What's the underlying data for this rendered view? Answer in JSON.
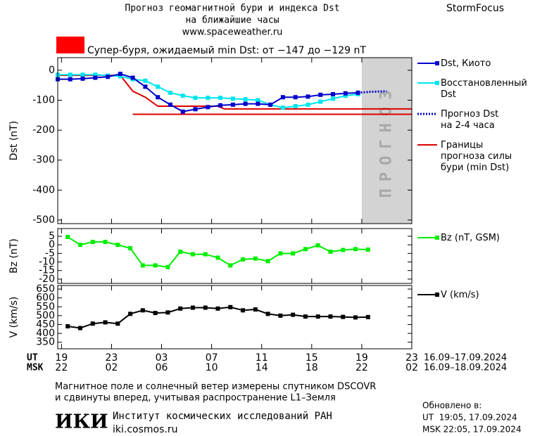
{
  "header": {
    "title": "Прогноз геомагнитной бури и индекса Dst",
    "subtitle": "на ближайшие часы",
    "url": "www.spaceweather.ru",
    "brand": "StormFocus",
    "storm_text": "Супер-буря, ожидаемый min Dst: от −147 до −129 nT",
    "storm_color": "#ff0000"
  },
  "chart_data": [
    {
      "type": "line",
      "ylabel": "Dst (nT)",
      "xlim": [
        -0.3,
        28
      ],
      "ylim": [
        -512,
        42
      ],
      "xticks": [
        0,
        4,
        8,
        12,
        16,
        20,
        24,
        28
      ],
      "yticks": [
        0,
        -100,
        -200,
        -300,
        -400,
        -500
      ],
      "forecast_x": [
        24,
        28
      ],
      "forecast_color": "#d3d3d3",
      "forecast_label": "ПРОГНОЗ",
      "series": [
        {
          "name": "Границы\nпрогноза силы\nбури (min Dst)",
          "color": "#dd0000",
          "marker": "none",
          "x": [
            -0.3,
            4.7,
            5.7,
            6.7,
            7.7,
            12.5,
            13,
            28
          ],
          "values": [
            -17,
            -17,
            -70,
            -90,
            -120,
            -120,
            -129,
            -129
          ]
        },
        {
          "color": "#dd0000",
          "marker": "none",
          "x": [
            5.7,
            28
          ],
          "values": [
            -147,
            -147
          ]
        },
        {
          "name": "Восстановленный\nDst",
          "color": "#00e5ee",
          "marker": "square",
          "x": [
            -0.3,
            0.7,
            1.7,
            2.7,
            3.7,
            4.7,
            5.7,
            6.7,
            7.7,
            8.7,
            9.7,
            10.7,
            11.7,
            12.7,
            13.7,
            14.7,
            15.7,
            16.7,
            17.7,
            18.7,
            19.7,
            20.7,
            21.7,
            22.7,
            23.7
          ],
          "values": [
            -15,
            -15,
            -15,
            -15,
            -18,
            -20,
            -30,
            -35,
            -55,
            -75,
            -85,
            -92,
            -92,
            -92,
            -95,
            -97,
            -100,
            -115,
            -125,
            -120,
            -115,
            -105,
            -95,
            -85,
            -80
          ]
        },
        {
          "name": "Dst, Киото",
          "color": "#0000cc",
          "marker": "square",
          "x": [
            -0.3,
            0.7,
            1.7,
            2.7,
            3.7,
            4.7,
            5.7,
            6.7,
            7.7,
            8.7,
            9.7,
            10.7,
            11.7,
            12.7,
            13.7,
            14.7,
            15.7,
            16.7,
            17.7,
            18.7,
            19.7,
            20.7,
            21.7,
            22.7,
            23.7
          ],
          "values": [
            -30,
            -30,
            -28,
            -25,
            -22,
            -12,
            -25,
            -55,
            -90,
            -115,
            -138,
            -130,
            -123,
            -117,
            -115,
            -112,
            -112,
            -115,
            -90,
            -90,
            -88,
            -82,
            -80,
            -77,
            -75
          ]
        },
        {
          "name": "Прогноз Dst\nна 2-4 часа",
          "color": "#0000cc",
          "marker": "none",
          "dash": "dotted",
          "x": [
            23.7,
            24.7,
            26
          ],
          "values": [
            -75,
            -72,
            -70
          ]
        }
      ]
    },
    {
      "type": "line",
      "ylabel": "Bz (nT)",
      "xlim": [
        -0.3,
        28
      ],
      "ylim": [
        -22.5,
        9.5
      ],
      "xticks": [
        0,
        4,
        8,
        12,
        16,
        20,
        24,
        28
      ],
      "yticks": [
        5,
        0,
        -5,
        -10,
        -15,
        -20
      ],
      "series": [
        {
          "name": "Bz (nT, GSM)",
          "color": "#00ee00",
          "marker": "square",
          "x": [
            0.5,
            1.5,
            2.5,
            3.5,
            4.5,
            5.5,
            6.5,
            7.5,
            8.5,
            9.5,
            10.5,
            11.5,
            12.5,
            13.5,
            14.5,
            15.5,
            16.5,
            17.5,
            18.5,
            19.5,
            20.5,
            21.5,
            22.5,
            23.5,
            24.5
          ],
          "values": [
            4.6,
            0,
            1.7,
            1.7,
            0,
            -2,
            -12,
            -12,
            -13,
            -4,
            -5.5,
            -5.5,
            -7.5,
            -12,
            -8.5,
            -8,
            -9.5,
            -5,
            -5,
            -2.5,
            -0.3,
            -4,
            -3,
            -2.5,
            -2.8
          ]
        }
      ]
    },
    {
      "type": "line",
      "ylabel": "V (km/s)",
      "xlim": [
        -0.3,
        28
      ],
      "ylim": [
        313,
        670
      ],
      "xticks": [
        {
          "value": 0,
          "label": "19"
        },
        {
          "value": 4,
          "label": "23"
        },
        {
          "value": 8,
          "label": "03"
        },
        {
          "value": 12,
          "label": "07"
        },
        {
          "value": 16,
          "label": "11"
        },
        {
          "value": 20,
          "label": "15"
        },
        {
          "value": 24,
          "label": "19"
        },
        {
          "value": 28,
          "label": "23"
        }
      ],
      "msk_labels": [
        "22",
        "02",
        "06",
        "10",
        "14",
        "18",
        "22",
        "02"
      ],
      "ut_label": "UT",
      "msk_label": "MSK",
      "ut_dates": "16.09–17.09.2024",
      "msk_dates": "16.09–18.09.2024",
      "yticks": [
        650,
        600,
        550,
        500,
        450,
        400,
        350
      ],
      "series": [
        {
          "name": "V (km/s)",
          "color": "#000000",
          "marker": "square",
          "x": [
            0.5,
            1.5,
            2.5,
            3.5,
            4.5,
            5.5,
            6.5,
            7.5,
            8.5,
            9.5,
            10.5,
            11.5,
            12.5,
            13.5,
            14.5,
            15.5,
            16.5,
            17.5,
            18.5,
            19.5,
            20.5,
            21.5,
            22.5,
            23.5,
            24.5
          ],
          "values": [
            440,
            430,
            455,
            462,
            455,
            510,
            530,
            515,
            518,
            540,
            545,
            545,
            540,
            548,
            530,
            535,
            510,
            500,
            505,
            495,
            495,
            495,
            493,
            490,
            492
          ]
        }
      ]
    }
  ],
  "footer": {
    "note_1": "Магнитное поле и солнечный ветер измерены спутником DSCOVR",
    "note_2": "и сдвинуты вперед, учитывая распространение L1–Земля",
    "logo": "ИКИ",
    "institute": "Институт космических исследований РАН",
    "site": "iki.cosmos.ru",
    "updated": "Обновлено в:",
    "updated_ut": "UT  19:05, 17.09.2024",
    "updated_msk": "MSK 22:05, 17.09.2024"
  }
}
